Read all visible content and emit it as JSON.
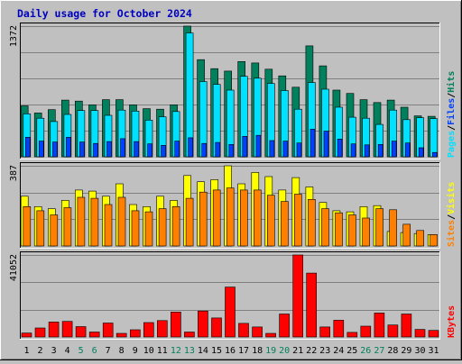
{
  "chart_data": {
    "type": "bar",
    "title": "Daily usage for October 2024",
    "categories": [
      "1",
      "2",
      "3",
      "4",
      "5",
      "6",
      "7",
      "8",
      "9",
      "10",
      "11",
      "12",
      "13",
      "14",
      "15",
      "16",
      "17",
      "18",
      "19",
      "20",
      "21",
      "22",
      "23",
      "24",
      "25",
      "26",
      "27",
      "28",
      "29",
      "30",
      "31"
    ],
    "weekend_days": [
      "5",
      "6",
      "12",
      "13",
      "19",
      "20",
      "26",
      "27"
    ],
    "panels": [
      {
        "id": "hits-files-pages",
        "ymax_label": "1372",
        "ylim": [
          0,
          1372
        ],
        "legend": [
          "Pages",
          "Files",
          "Hits"
        ],
        "legend_colors": [
          "#00e0ff",
          "#0040ff",
          "#00805c"
        ],
        "series": [
          {
            "name": "Hits",
            "color": "#00805c",
            "values": [
              535,
              460,
              495,
              595,
              585,
              545,
              600,
              600,
              545,
              505,
              500,
              545,
              1372,
              1020,
              925,
              900,
              1000,
              985,
              920,
              850,
              730,
              1165,
              955,
              700,
              665,
              600,
              570,
              595,
              520,
              430,
              425
            ]
          },
          {
            "name": "Files",
            "color": "#00e0ff",
            "values": [
              450,
              405,
              370,
              445,
              485,
              485,
              435,
              490,
              480,
              385,
              420,
              475,
              1300,
              790,
              760,
              700,
              845,
              825,
              770,
              695,
              500,
              780,
              710,
              520,
              415,
              405,
              340,
              490,
              390,
              410,
              400
            ]
          },
          {
            "name": "Pages",
            "color": "#0040ff",
            "values": [
              205,
              165,
              155,
              205,
              155,
              140,
              160,
              190,
              160,
              135,
              120,
              165,
              200,
              140,
              150,
              130,
              215,
              225,
              170,
              165,
              145,
              290,
              270,
              185,
              135,
              125,
              130,
              165,
              145,
              95,
              45
            ]
          }
        ]
      },
      {
        "id": "visits-sites",
        "ymax_label": "387",
        "ylim": [
          0,
          387
        ],
        "legend": [
          "Sites",
          "Visits"
        ],
        "legend_colors": [
          "#ff8000",
          "#ffff00"
        ],
        "series": [
          {
            "name": "Visits",
            "color": "#ffff00",
            "values": [
              240,
              190,
              180,
              220,
              270,
              265,
              240,
              300,
              200,
              190,
              240,
              220,
              340,
              310,
              320,
              387,
              300,
              355,
              335,
              270,
              330,
              285,
              210,
              170,
              165,
              190,
              195,
              70,
              65,
              60,
              55
            ]
          },
          {
            "name": "Sites",
            "color": "#ff8000",
            "values": [
              190,
              170,
              150,
              185,
              235,
              230,
              200,
              235,
              170,
              165,
              180,
              190,
              230,
              260,
              270,
              280,
              270,
              270,
              245,
              215,
              250,
              225,
              180,
              160,
              150,
              135,
              180,
              175,
              105,
              75,
              55
            ]
          }
        ]
      },
      {
        "id": "kbytes",
        "ymax_label": "41052",
        "ylim": [
          0,
          41052
        ],
        "legend": [
          "KBytes"
        ],
        "legend_colors": [
          "#ff0000"
        ],
        "series": [
          {
            "name": "KBytes",
            "color": "#ff0000",
            "values": [
              2000,
              4500,
              7500,
              7800,
              5200,
              2500,
              7000,
              1800,
              3600,
              7200,
              8200,
              12500,
              2500,
              13000,
              9500,
              25000,
              6800,
              5000,
              1800,
              11500,
              41052,
              32000,
              5000,
              8400,
              2300,
              5400,
              12000,
              6000,
              11500,
              3800,
              3300
            ]
          }
        ]
      }
    ]
  }
}
